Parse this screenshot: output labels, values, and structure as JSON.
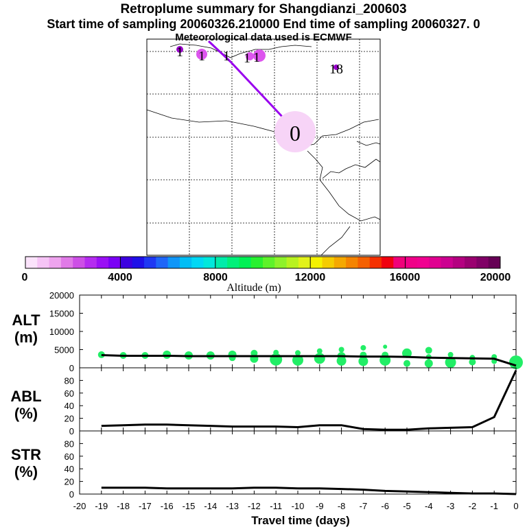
{
  "header": {
    "title": "Retroplume summary for Shangdianzi_200603",
    "sampling_line": "Start time of sampling 20060326.210000     End time of sampling 20060327.     0",
    "met_line": "Meteorological data used is ECMWF"
  },
  "map": {
    "day_labels": [
      {
        "text": "1"
      },
      {
        "text": "1"
      },
      {
        "text": "1"
      },
      {
        "text": "1"
      },
      {
        "text": "1"
      },
      {
        "text": "18"
      },
      {
        "text": "0"
      }
    ]
  },
  "colors": {
    "trajectory": "#9900ee",
    "marker_light": "#f7d4f7",
    "marker_mid": "#dd55ee",
    "marker_dark": "#9900cc",
    "alt_dots": "#22ee66",
    "line": "#000000"
  },
  "colorbar": {
    "label": "Altitude (m)",
    "ticks": [
      "0",
      "4000",
      "8000",
      "12000",
      "16000",
      "20000"
    ],
    "colors": [
      "#fbe3fb",
      "#f6c4f6",
      "#eea4ee",
      "#e07ae7",
      "#cd50e6",
      "#b52cf0",
      "#9a10f5",
      "#7a00f5",
      "#3c00e0",
      "#1f10e8",
      "#1f38f3",
      "#1f66f8",
      "#1096f8",
      "#00bdf5",
      "#00d8f5",
      "#00e8dc",
      "#00ecaa",
      "#00f07a",
      "#00f055",
      "#28f030",
      "#5ef22a",
      "#8ef22a",
      "#b8f220",
      "#e2f21a",
      "#f5f200",
      "#f5cc00",
      "#f5a800",
      "#f58400",
      "#f56000",
      "#f53000",
      "#f00010",
      "#f0007a",
      "#f00088",
      "#f00090",
      "#e00090",
      "#cc0090",
      "#b40080",
      "#9a0070",
      "#800066",
      "#660055"
    ]
  },
  "chart_data": [
    {
      "type": "line",
      "id": "alt",
      "panel_label": [
        "ALT",
        "(m)"
      ],
      "x": [
        -19,
        -18,
        -17,
        -16,
        -15,
        -14,
        -13,
        -12,
        -11,
        -10,
        -9,
        -8,
        -7,
        -6,
        -5,
        -4,
        -3,
        -2,
        -1,
        0
      ],
      "series": [
        {
          "name": "ALT",
          "values": [
            3500,
            3300,
            3300,
            3300,
            3200,
            3200,
            3200,
            3200,
            3200,
            3200,
            3200,
            3200,
            3100,
            3100,
            3000,
            2800,
            2700,
            2600,
            2500,
            600
          ]
        }
      ],
      "ylim": [
        0,
        20000
      ],
      "yticks": [
        "0",
        "5000",
        "10000",
        "15000",
        "20000"
      ],
      "yticks_values": [
        0,
        5000,
        10000,
        15000,
        20000
      ],
      "scatter": [
        {
          "x": -19,
          "y": 3600,
          "size": 5
        },
        {
          "x": -18,
          "y": 3400,
          "size": 5
        },
        {
          "x": -17,
          "y": 3400,
          "size": 5
        },
        {
          "x": -16,
          "y": 3600,
          "size": 6
        },
        {
          "x": -15,
          "y": 3400,
          "size": 6
        },
        {
          "x": -14,
          "y": 3400,
          "size": 6
        },
        {
          "x": -13,
          "y": 3600,
          "size": 6
        },
        {
          "x": -13,
          "y": 2800,
          "size": 5
        },
        {
          "x": -12,
          "y": 4000,
          "size": 5
        },
        {
          "x": -12,
          "y": 2500,
          "size": 6
        },
        {
          "x": -11,
          "y": 4200,
          "size": 4
        },
        {
          "x": -11,
          "y": 2300,
          "size": 9
        },
        {
          "x": -10,
          "y": 4100,
          "size": 4
        },
        {
          "x": -10,
          "y": 2100,
          "size": 8
        },
        {
          "x": -9,
          "y": 4600,
          "size": 4
        },
        {
          "x": -9,
          "y": 2600,
          "size": 8
        },
        {
          "x": -8,
          "y": 5000,
          "size": 4
        },
        {
          "x": -8,
          "y": 3200,
          "size": 6
        },
        {
          "x": -8,
          "y": 1900,
          "size": 7
        },
        {
          "x": -7,
          "y": 5500,
          "size": 4
        },
        {
          "x": -7,
          "y": 3500,
          "size": 5
        },
        {
          "x": -7,
          "y": 1800,
          "size": 7
        },
        {
          "x": -6,
          "y": 5800,
          "size": 3
        },
        {
          "x": -6,
          "y": 3500,
          "size": 5
        },
        {
          "x": -6,
          "y": 2100,
          "size": 8
        },
        {
          "x": -5,
          "y": 4000,
          "size": 7
        },
        {
          "x": -5,
          "y": 1200,
          "size": 5
        },
        {
          "x": -4,
          "y": 4800,
          "size": 5
        },
        {
          "x": -4,
          "y": 3000,
          "size": 4
        },
        {
          "x": -4,
          "y": 1200,
          "size": 6
        },
        {
          "x": -3,
          "y": 3600,
          "size": 4
        },
        {
          "x": -3,
          "y": 1500,
          "size": 8
        },
        {
          "x": -2,
          "y": 2800,
          "size": 4
        },
        {
          "x": -2,
          "y": 1600,
          "size": 5
        },
        {
          "x": -1,
          "y": 3000,
          "size": 4
        },
        {
          "x": -1,
          "y": 1800,
          "size": 4
        },
        {
          "x": 0,
          "y": 1500,
          "size": 10
        }
      ]
    },
    {
      "type": "line",
      "id": "abl",
      "panel_label": [
        "ABL",
        "(%)"
      ],
      "x": [
        -19,
        -18,
        -17,
        -16,
        -15,
        -14,
        -13,
        -12,
        -11,
        -10,
        -9,
        -8,
        -7,
        -6,
        -5,
        -4,
        -3,
        -2,
        -1,
        0
      ],
      "series": [
        {
          "name": "ABL",
          "values": [
            8,
            9,
            10,
            10,
            9,
            8,
            7,
            7,
            7,
            6,
            9,
            9,
            3,
            2,
            2,
            4,
            5,
            6,
            22,
            96
          ]
        }
      ],
      "ylim": [
        0,
        100
      ],
      "yticks": [
        "0",
        "20",
        "40",
        "60",
        "80"
      ],
      "yticks_values": [
        0,
        20,
        40,
        60,
        80
      ]
    },
    {
      "type": "line",
      "id": "str",
      "panel_label": [
        "STR",
        "(%)"
      ],
      "x": [
        -19,
        -18,
        -17,
        -16,
        -15,
        -14,
        -13,
        -12,
        -11,
        -10,
        -9,
        -8,
        -7,
        -6,
        -5,
        -4,
        -3,
        -2,
        -1,
        0
      ],
      "series": [
        {
          "name": "STR",
          "values": [
            10,
            10,
            10,
            9,
            9,
            9,
            9,
            10,
            10,
            9,
            9,
            8,
            7,
            5,
            4,
            3,
            2,
            1,
            1,
            0
          ]
        }
      ],
      "ylim": [
        0,
        100
      ],
      "yticks": [
        "0",
        "20",
        "40",
        "60",
        "80"
      ],
      "yticks_values": [
        0,
        20,
        40,
        60,
        80
      ],
      "xlabel": "Travel time (days)",
      "xticks": [
        "-20",
        "-19",
        "-18",
        "-17",
        "-16",
        "-15",
        "-14",
        "-13",
        "-12",
        "-11",
        "-10",
        "-9",
        "-8",
        "-7",
        "-6",
        "-5",
        "-4",
        "-3",
        "-2",
        "-1",
        "0"
      ],
      "xticks_values": [
        -20,
        -19,
        -18,
        -17,
        -16,
        -15,
        -14,
        -13,
        -12,
        -11,
        -10,
        -9,
        -8,
        -7,
        -6,
        -5,
        -4,
        -3,
        -2,
        -1,
        0
      ]
    }
  ]
}
